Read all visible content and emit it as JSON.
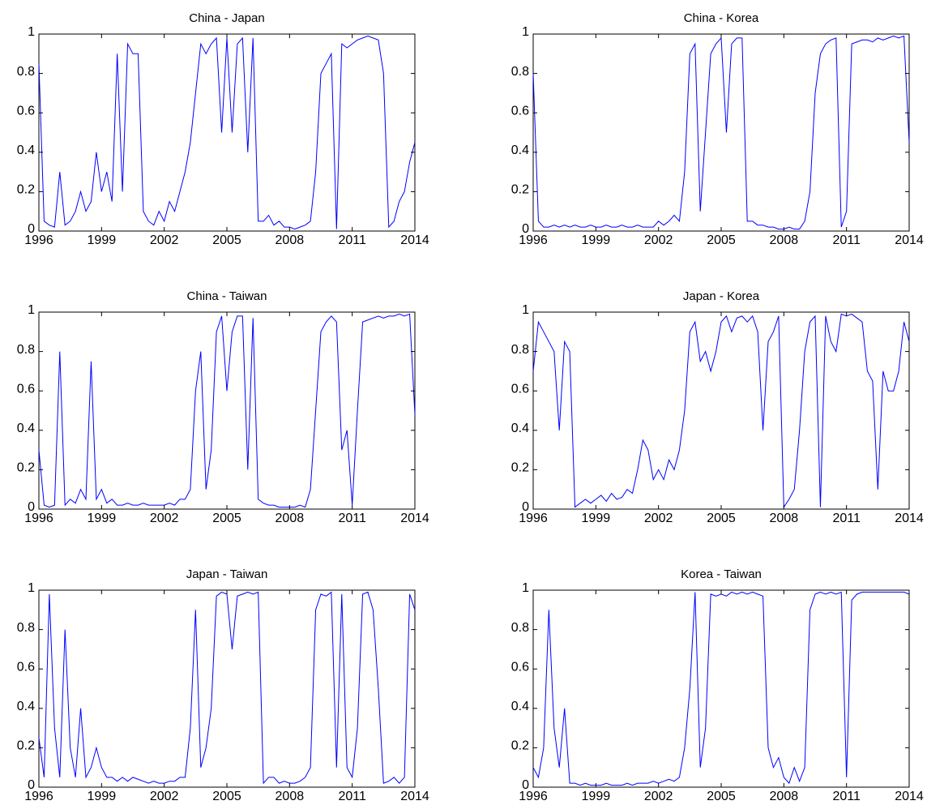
{
  "chart_data": [
    {
      "type": "line",
      "title": "China - Japan",
      "x": [
        1996,
        1996.25,
        1996.5,
        1996.75,
        1997,
        1997.25,
        1997.5,
        1997.75,
        1998,
        1998.25,
        1998.5,
        1998.75,
        1999,
        1999.25,
        1999.5,
        1999.75,
        2000,
        2000.25,
        2000.5,
        2000.75,
        2001,
        2001.25,
        2001.5,
        2001.75,
        2002,
        2002.25,
        2002.5,
        2002.75,
        2003,
        2003.25,
        2003.5,
        2003.75,
        2004,
        2004.25,
        2004.5,
        2004.75,
        2005,
        2005.25,
        2005.5,
        2005.75,
        2006,
        2006.25,
        2006.5,
        2006.75,
        2007,
        2007.25,
        2007.5,
        2007.75,
        2008,
        2008.25,
        2008.5,
        2008.75,
        2009,
        2009.25,
        2009.5,
        2009.75,
        2010,
        2010.25,
        2010.5,
        2010.75,
        2011,
        2011.25,
        2011.5,
        2011.75,
        2012,
        2012.25,
        2012.5,
        2012.75,
        2013,
        2013.25,
        2013.5,
        2013.75,
        2014
      ],
      "values": [
        0.85,
        0.05,
        0.03,
        0.02,
        0.3,
        0.03,
        0.05,
        0.1,
        0.2,
        0.1,
        0.15,
        0.4,
        0.2,
        0.3,
        0.15,
        0.9,
        0.2,
        0.95,
        0.9,
        0.9,
        0.1,
        0.05,
        0.03,
        0.1,
        0.05,
        0.15,
        0.1,
        0.2,
        0.3,
        0.45,
        0.7,
        0.95,
        0.9,
        0.95,
        0.98,
        0.5,
        0.98,
        0.5,
        0.95,
        0.98,
        0.4,
        0.98,
        0.05,
        0.05,
        0.08,
        0.03,
        0.05,
        0.02,
        0.02,
        0.01,
        0.02,
        0.03,
        0.05,
        0.3,
        0.8,
        0.85,
        0.9,
        0.01,
        0.95,
        0.93,
        0.95,
        0.97,
        0.98,
        0.99,
        0.98,
        0.97,
        0.8,
        0.02,
        0.05,
        0.15,
        0.2,
        0.35,
        0.45
      ],
      "color": "#0000ff",
      "xlim": [
        1996,
        2014
      ],
      "ylim": [
        0,
        1
      ],
      "xticks": [
        1996,
        1999,
        2002,
        2005,
        2008,
        2011,
        2014
      ],
      "yticks": [
        0,
        0.2,
        0.4,
        0.6,
        0.8,
        1
      ]
    },
    {
      "type": "line",
      "title": "China - Korea",
      "x": [
        1996,
        1996.25,
        1996.5,
        1996.75,
        1997,
        1997.25,
        1997.5,
        1997.75,
        1998,
        1998.25,
        1998.5,
        1998.75,
        1999,
        1999.25,
        1999.5,
        1999.75,
        2000,
        2000.25,
        2000.5,
        2000.75,
        2001,
        2001.25,
        2001.5,
        2001.75,
        2002,
        2002.25,
        2002.5,
        2002.75,
        2003,
        2003.25,
        2003.5,
        2003.75,
        2004,
        2004.25,
        2004.5,
        2004.75,
        2005,
        2005.25,
        2005.5,
        2005.75,
        2006,
        2006.25,
        2006.5,
        2006.75,
        2007,
        2007.25,
        2007.5,
        2007.75,
        2008,
        2008.25,
        2008.5,
        2008.75,
        2009,
        2009.25,
        2009.5,
        2009.75,
        2010,
        2010.25,
        2010.5,
        2010.75,
        2011,
        2011.25,
        2011.5,
        2011.75,
        2012,
        2012.25,
        2012.5,
        2012.75,
        2013,
        2013.25,
        2013.5,
        2013.75,
        2014
      ],
      "values": [
        0.8,
        0.05,
        0.02,
        0.02,
        0.03,
        0.02,
        0.03,
        0.02,
        0.03,
        0.02,
        0.02,
        0.03,
        0.02,
        0.02,
        0.03,
        0.02,
        0.02,
        0.03,
        0.02,
        0.02,
        0.03,
        0.02,
        0.02,
        0.02,
        0.05,
        0.03,
        0.05,
        0.08,
        0.05,
        0.3,
        0.9,
        0.95,
        0.1,
        0.5,
        0.9,
        0.95,
        0.98,
        0.5,
        0.95,
        0.98,
        0.98,
        0.05,
        0.05,
        0.03,
        0.03,
        0.02,
        0.02,
        0.01,
        0.01,
        0.02,
        0.01,
        0.01,
        0.05,
        0.2,
        0.7,
        0.9,
        0.95,
        0.97,
        0.98,
        0.02,
        0.1,
        0.95,
        0.96,
        0.97,
        0.97,
        0.96,
        0.98,
        0.97,
        0.98,
        0.99,
        0.98,
        0.99,
        0.45
      ],
      "color": "#0000ff",
      "xlim": [
        1996,
        2014
      ],
      "ylim": [
        0,
        1
      ],
      "xticks": [
        1996,
        1999,
        2002,
        2005,
        2008,
        2011,
        2014
      ],
      "yticks": [
        0,
        0.2,
        0.4,
        0.6,
        0.8,
        1
      ]
    },
    {
      "type": "line",
      "title": "China - Taiwan",
      "x": [
        1996,
        1996.25,
        1996.5,
        1996.75,
        1997,
        1997.25,
        1997.5,
        1997.75,
        1998,
        1998.25,
        1998.5,
        1998.75,
        1999,
        1999.25,
        1999.5,
        1999.75,
        2000,
        2000.25,
        2000.5,
        2000.75,
        2001,
        2001.25,
        2001.5,
        2001.75,
        2002,
        2002.25,
        2002.5,
        2002.75,
        2003,
        2003.25,
        2003.5,
        2003.75,
        2004,
        2004.25,
        2004.5,
        2004.75,
        2005,
        2005.25,
        2005.5,
        2005.75,
        2006,
        2006.25,
        2006.5,
        2006.75,
        2007,
        2007.25,
        2007.5,
        2007.75,
        2008,
        2008.25,
        2008.5,
        2008.75,
        2009,
        2009.25,
        2009.5,
        2009.75,
        2010,
        2010.25,
        2010.5,
        2010.75,
        2011,
        2011.25,
        2011.5,
        2011.75,
        2012,
        2012.25,
        2012.5,
        2012.75,
        2013,
        2013.25,
        2013.5,
        2013.75,
        2014
      ],
      "values": [
        0.3,
        0.02,
        0.01,
        0.02,
        0.8,
        0.02,
        0.05,
        0.03,
        0.1,
        0.05,
        0.75,
        0.05,
        0.1,
        0.03,
        0.05,
        0.02,
        0.02,
        0.03,
        0.02,
        0.02,
        0.03,
        0.02,
        0.02,
        0.02,
        0.02,
        0.03,
        0.02,
        0.05,
        0.05,
        0.1,
        0.6,
        0.8,
        0.1,
        0.3,
        0.9,
        0.98,
        0.6,
        0.9,
        0.98,
        0.98,
        0.2,
        0.97,
        0.05,
        0.03,
        0.02,
        0.02,
        0.01,
        0.01,
        0.01,
        0.01,
        0.02,
        0.01,
        0.1,
        0.5,
        0.9,
        0.95,
        0.98,
        0.95,
        0.3,
        0.4,
        0.02,
        0.5,
        0.95,
        0.96,
        0.97,
        0.98,
        0.97,
        0.98,
        0.98,
        0.99,
        0.98,
        0.99,
        0.48
      ],
      "color": "#0000ff",
      "xlim": [
        1996,
        2014
      ],
      "ylim": [
        0,
        1
      ],
      "xticks": [
        1996,
        1999,
        2002,
        2005,
        2008,
        2011,
        2014
      ],
      "yticks": [
        0,
        0.2,
        0.4,
        0.6,
        0.8,
        1
      ]
    },
    {
      "type": "line",
      "title": "Japan - Korea",
      "x": [
        1996,
        1996.25,
        1996.5,
        1996.75,
        1997,
        1997.25,
        1997.5,
        1997.75,
        1998,
        1998.25,
        1998.5,
        1998.75,
        1999,
        1999.25,
        1999.5,
        1999.75,
        2000,
        2000.25,
        2000.5,
        2000.75,
        2001,
        2001.25,
        2001.5,
        2001.75,
        2002,
        2002.25,
        2002.5,
        2002.75,
        2003,
        2003.25,
        2003.5,
        2003.75,
        2004,
        2004.25,
        2004.5,
        2004.75,
        2005,
        2005.25,
        2005.5,
        2005.75,
        2006,
        2006.25,
        2006.5,
        2006.75,
        2007,
        2007.25,
        2007.5,
        2007.75,
        2008,
        2008.25,
        2008.5,
        2008.75,
        2009,
        2009.25,
        2009.5,
        2009.75,
        2010,
        2010.25,
        2010.5,
        2010.75,
        2011,
        2011.25,
        2011.5,
        2011.75,
        2012,
        2012.25,
        2012.5,
        2012.75,
        2013,
        2013.25,
        2013.5,
        2013.75,
        2014
      ],
      "values": [
        0.7,
        0.95,
        0.9,
        0.85,
        0.8,
        0.4,
        0.85,
        0.8,
        0.01,
        0.03,
        0.05,
        0.03,
        0.05,
        0.07,
        0.04,
        0.08,
        0.05,
        0.06,
        0.1,
        0.08,
        0.2,
        0.35,
        0.3,
        0.15,
        0.2,
        0.15,
        0.25,
        0.2,
        0.3,
        0.5,
        0.9,
        0.95,
        0.75,
        0.8,
        0.7,
        0.8,
        0.95,
        0.98,
        0.9,
        0.97,
        0.98,
        0.95,
        0.98,
        0.9,
        0.4,
        0.85,
        0.9,
        0.98,
        0.01,
        0.05,
        0.1,
        0.4,
        0.8,
        0.95,
        0.98,
        0.01,
        0.98,
        0.85,
        0.8,
        0.99,
        0.98,
        0.99,
        0.97,
        0.95,
        0.7,
        0.65,
        0.1,
        0.7,
        0.6,
        0.6,
        0.7,
        0.95,
        0.85
      ],
      "color": "#0000ff",
      "xlim": [
        1996,
        2014
      ],
      "ylim": [
        0,
        1
      ],
      "xticks": [
        1996,
        1999,
        2002,
        2005,
        2008,
        2011,
        2014
      ],
      "yticks": [
        0,
        0.2,
        0.4,
        0.6,
        0.8,
        1
      ]
    },
    {
      "type": "line",
      "title": "Japan - Taiwan",
      "x": [
        1996,
        1996.25,
        1996.5,
        1996.75,
        1997,
        1997.25,
        1997.5,
        1997.75,
        1998,
        1998.25,
        1998.5,
        1998.75,
        1999,
        1999.25,
        1999.5,
        1999.75,
        2000,
        2000.25,
        2000.5,
        2000.75,
        2001,
        2001.25,
        2001.5,
        2001.75,
        2002,
        2002.25,
        2002.5,
        2002.75,
        2003,
        2003.25,
        2003.5,
        2003.75,
        2004,
        2004.25,
        2004.5,
        2004.75,
        2005,
        2005.25,
        2005.5,
        2005.75,
        2006,
        2006.25,
        2006.5,
        2006.75,
        2007,
        2007.25,
        2007.5,
        2007.75,
        2008,
        2008.25,
        2008.5,
        2008.75,
        2009,
        2009.25,
        2009.5,
        2009.75,
        2010,
        2010.25,
        2010.5,
        2010.75,
        2011,
        2011.25,
        2011.5,
        2011.75,
        2012,
        2012.25,
        2012.5,
        2012.75,
        2013,
        2013.25,
        2013.5,
        2013.75,
        2014
      ],
      "values": [
        0.25,
        0.05,
        0.98,
        0.3,
        0.05,
        0.8,
        0.2,
        0.05,
        0.4,
        0.05,
        0.1,
        0.2,
        0.1,
        0.05,
        0.05,
        0.03,
        0.05,
        0.03,
        0.05,
        0.04,
        0.03,
        0.02,
        0.03,
        0.02,
        0.02,
        0.03,
        0.03,
        0.05,
        0.05,
        0.3,
        0.9,
        0.1,
        0.2,
        0.4,
        0.97,
        0.99,
        0.98,
        0.7,
        0.97,
        0.98,
        0.99,
        0.98,
        0.99,
        0.02,
        0.05,
        0.05,
        0.02,
        0.03,
        0.02,
        0.02,
        0.03,
        0.05,
        0.1,
        0.9,
        0.98,
        0.97,
        0.99,
        0.1,
        0.98,
        0.1,
        0.05,
        0.3,
        0.98,
        0.99,
        0.9,
        0.5,
        0.02,
        0.03,
        0.05,
        0.02,
        0.05,
        0.98,
        0.9
      ],
      "color": "#0000ff",
      "xlim": [
        1996,
        2014
      ],
      "ylim": [
        0,
        1
      ],
      "xticks": [
        1996,
        1999,
        2002,
        2005,
        2008,
        2011,
        2014
      ],
      "yticks": [
        0,
        0.2,
        0.4,
        0.6,
        0.8,
        1
      ]
    },
    {
      "type": "line",
      "title": "Korea - Taiwan",
      "x": [
        1996,
        1996.25,
        1996.5,
        1996.75,
        1997,
        1997.25,
        1997.5,
        1997.75,
        1998,
        1998.25,
        1998.5,
        1998.75,
        1999,
        1999.25,
        1999.5,
        1999.75,
        2000,
        2000.25,
        2000.5,
        2000.75,
        2001,
        2001.25,
        2001.5,
        2001.75,
        2002,
        2002.25,
        2002.5,
        2002.75,
        2003,
        2003.25,
        2003.5,
        2003.75,
        2004,
        2004.25,
        2004.5,
        2004.75,
        2005,
        2005.25,
        2005.5,
        2005.75,
        2006,
        2006.25,
        2006.5,
        2006.75,
        2007,
        2007.25,
        2007.5,
        2007.75,
        2008,
        2008.25,
        2008.5,
        2008.75,
        2009,
        2009.25,
        2009.5,
        2009.75,
        2010,
        2010.25,
        2010.5,
        2010.75,
        2011,
        2011.25,
        2011.5,
        2011.75,
        2012,
        2012.25,
        2012.5,
        2012.75,
        2013,
        2013.25,
        2013.5,
        2013.75,
        2014
      ],
      "values": [
        0.1,
        0.05,
        0.2,
        0.9,
        0.3,
        0.1,
        0.4,
        0.02,
        0.02,
        0.01,
        0.02,
        0.01,
        0.01,
        0.01,
        0.02,
        0.01,
        0.01,
        0.01,
        0.02,
        0.01,
        0.02,
        0.02,
        0.02,
        0.03,
        0.02,
        0.03,
        0.04,
        0.03,
        0.05,
        0.2,
        0.5,
        0.99,
        0.1,
        0.3,
        0.98,
        0.97,
        0.98,
        0.97,
        0.99,
        0.98,
        0.99,
        0.98,
        0.99,
        0.98,
        0.97,
        0.2,
        0.1,
        0.15,
        0.05,
        0.02,
        0.1,
        0.03,
        0.1,
        0.9,
        0.98,
        0.99,
        0.98,
        0.99,
        0.98,
        0.99,
        0.05,
        0.95,
        0.98,
        0.99,
        0.99,
        0.99,
        0.99,
        0.99,
        0.99,
        0.99,
        0.99,
        0.99,
        0.98
      ],
      "color": "#0000ff",
      "xlim": [
        1996,
        2014
      ],
      "ylim": [
        0,
        1
      ],
      "xticks": [
        1996,
        1999,
        2002,
        2005,
        2008,
        2011,
        2014
      ],
      "yticks": [
        0,
        0.2,
        0.4,
        0.6,
        0.8,
        1
      ]
    }
  ]
}
